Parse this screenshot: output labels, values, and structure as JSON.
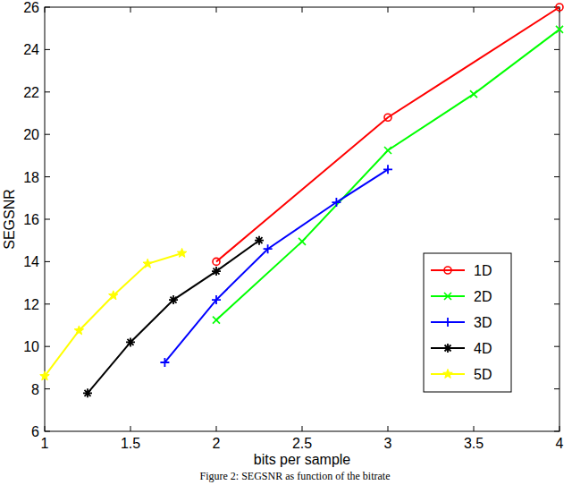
{
  "chart_data": {
    "type": "line",
    "x_label": "bits per sample",
    "y_label": "SEGSNR",
    "caption": "Figure 2: SEGSNR as function of the bitrate",
    "xlim": [
      1,
      4
    ],
    "xticks": [
      1,
      1.5,
      2,
      2.5,
      3,
      3.5,
      4
    ],
    "ylim": [
      6,
      26
    ],
    "yticks": [
      6,
      8,
      10,
      12,
      14,
      16,
      18,
      20,
      22,
      24,
      26
    ],
    "grid": false,
    "legend": "right",
    "series": [
      {
        "name": "1D",
        "color": "#ff0000",
        "marker": "circle",
        "x": [
          2,
          3,
          4
        ],
        "values": [
          14.0,
          20.8,
          26.0
        ]
      },
      {
        "name": "2D",
        "color": "#00ff00",
        "marker": "x",
        "x": [
          2,
          2.5,
          3,
          3.5,
          4
        ],
        "values": [
          11.25,
          14.95,
          19.25,
          21.9,
          24.95
        ]
      },
      {
        "name": "3D",
        "color": "#0000ff",
        "marker": "plus",
        "x": [
          1.7,
          2,
          2.3,
          2.7,
          3
        ],
        "values": [
          9.25,
          12.2,
          14.6,
          16.8,
          18.35
        ]
      },
      {
        "name": "4D",
        "color": "#000000",
        "marker": "asterisk",
        "x": [
          1.25,
          1.5,
          1.75,
          2,
          2.25
        ],
        "values": [
          7.8,
          10.2,
          12.2,
          13.55,
          15.0
        ]
      },
      {
        "name": "5D",
        "color": "#ffff00",
        "marker": "star",
        "x": [
          1,
          1.2,
          1.4,
          1.6,
          1.8
        ],
        "values": [
          8.6,
          10.75,
          12.4,
          13.9,
          14.4
        ]
      }
    ]
  }
}
